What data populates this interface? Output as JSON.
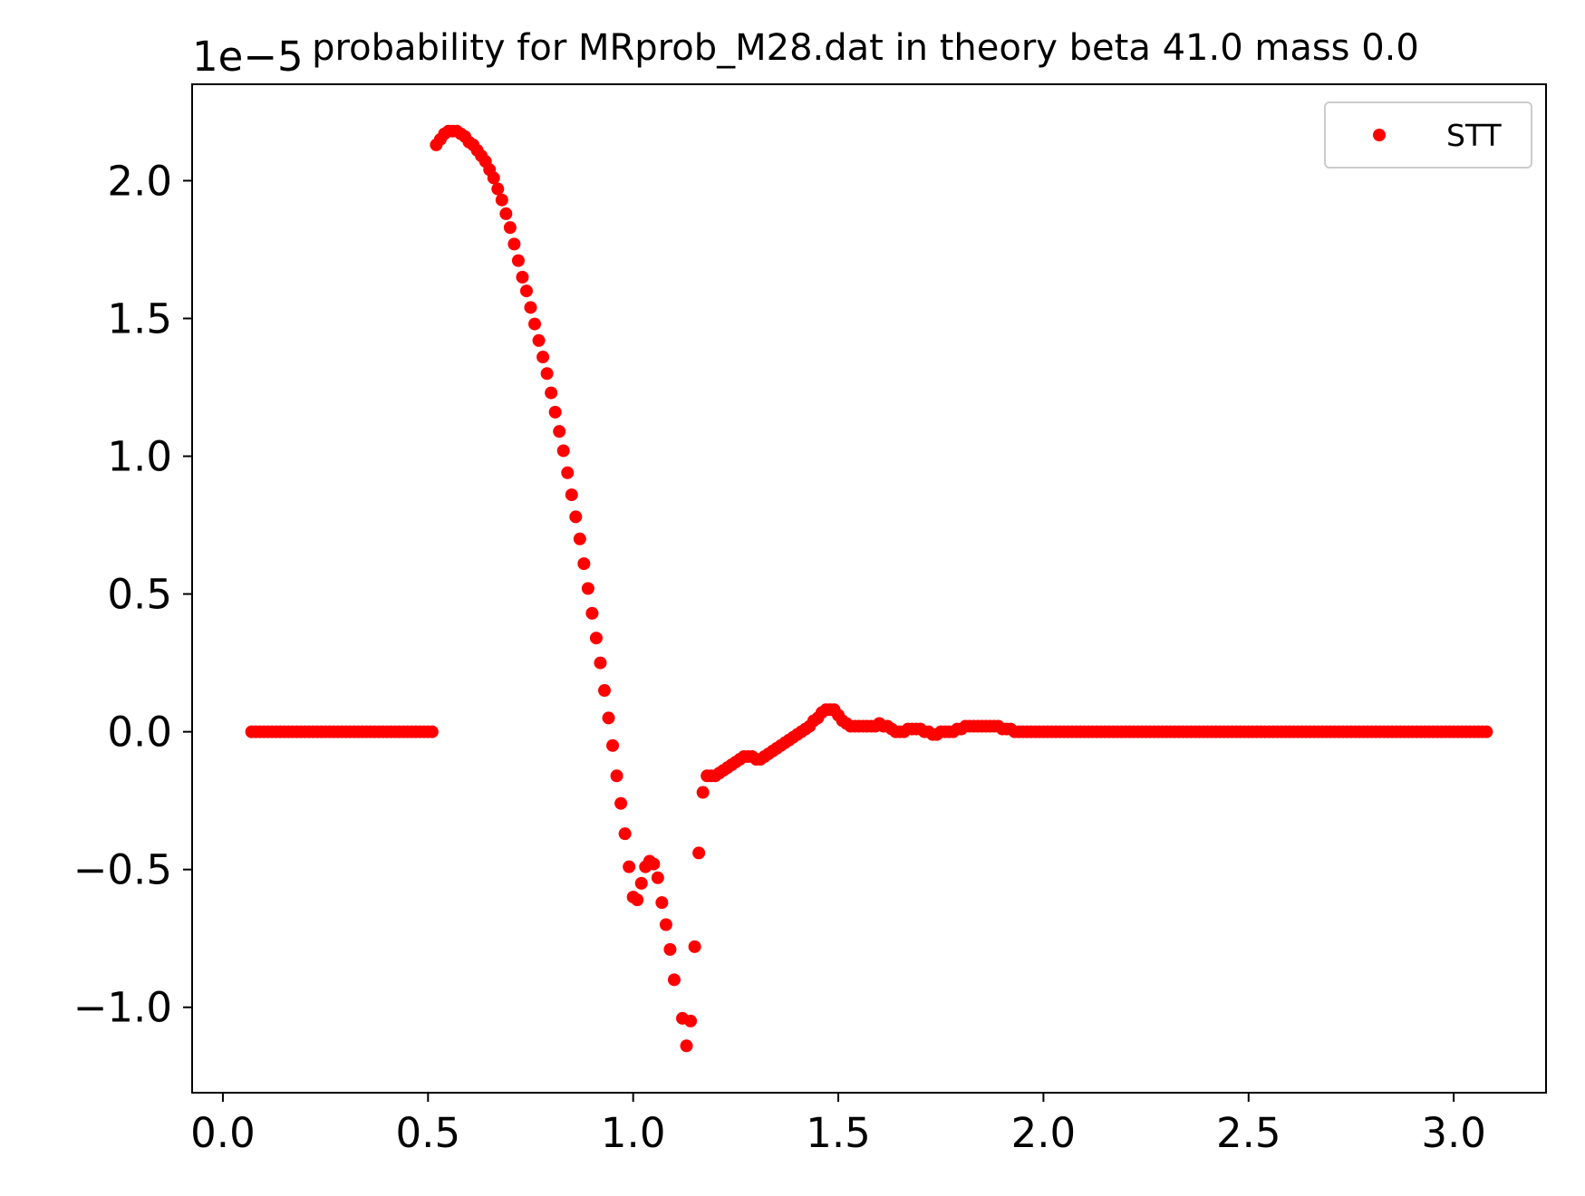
{
  "chart_data": {
    "type": "scatter",
    "title": "probability for MRprob_M28.dat in theory beta 41.0 mass 0.0",
    "xlabel": "",
    "ylabel": "",
    "y_offset_label": "1e−5",
    "xlim": [
      -0.075,
      3.225
    ],
    "ylim": [
      -1.31,
      2.35
    ],
    "x_ticks": [
      0.0,
      0.5,
      1.0,
      1.5,
      2.0,
      2.5,
      3.0
    ],
    "x_tick_labels": [
      "0.0",
      "0.5",
      "1.0",
      "1.5",
      "2.0",
      "2.5",
      "3.0"
    ],
    "y_ticks": [
      -1.0,
      -0.5,
      0.0,
      0.5,
      1.0,
      1.5,
      2.0
    ],
    "y_tick_labels": [
      "−1.0",
      "−0.5",
      "0.0",
      "0.5",
      "1.0",
      "1.5",
      "2.0"
    ],
    "grid": false,
    "legend_position": "top-right",
    "series": [
      {
        "name": "STT",
        "color": "#ff0000",
        "marker": "dot",
        "points": [
          [
            0.07,
            0.0
          ],
          [
            0.08,
            0.0
          ],
          [
            0.09,
            0.0
          ],
          [
            0.1,
            0.0
          ],
          [
            0.11,
            0.0
          ],
          [
            0.12,
            0.0
          ],
          [
            0.13,
            0.0
          ],
          [
            0.14,
            0.0
          ],
          [
            0.15,
            0.0
          ],
          [
            0.16,
            0.0
          ],
          [
            0.17,
            0.0
          ],
          [
            0.18,
            0.0
          ],
          [
            0.19,
            0.0
          ],
          [
            0.2,
            0.0
          ],
          [
            0.21,
            0.0
          ],
          [
            0.22,
            0.0
          ],
          [
            0.23,
            0.0
          ],
          [
            0.24,
            0.0
          ],
          [
            0.25,
            0.0
          ],
          [
            0.26,
            0.0
          ],
          [
            0.27,
            0.0
          ],
          [
            0.28,
            0.0
          ],
          [
            0.29,
            0.0
          ],
          [
            0.3,
            0.0
          ],
          [
            0.31,
            0.0
          ],
          [
            0.32,
            0.0
          ],
          [
            0.33,
            0.0
          ],
          [
            0.34,
            0.0
          ],
          [
            0.35,
            0.0
          ],
          [
            0.36,
            0.0
          ],
          [
            0.37,
            0.0
          ],
          [
            0.38,
            0.0
          ],
          [
            0.39,
            0.0
          ],
          [
            0.4,
            0.0
          ],
          [
            0.41,
            0.0
          ],
          [
            0.42,
            0.0
          ],
          [
            0.43,
            0.0
          ],
          [
            0.44,
            0.0
          ],
          [
            0.45,
            0.0
          ],
          [
            0.46,
            0.0
          ],
          [
            0.47,
            0.0
          ],
          [
            0.48,
            0.0
          ],
          [
            0.49,
            0.0
          ],
          [
            0.5,
            0.0
          ],
          [
            0.51,
            0.0
          ],
          [
            0.52,
            2.13
          ],
          [
            0.53,
            2.15
          ],
          [
            0.54,
            2.17
          ],
          [
            0.55,
            2.18
          ],
          [
            0.56,
            2.18
          ],
          [
            0.57,
            2.18
          ],
          [
            0.58,
            2.17
          ],
          [
            0.59,
            2.16
          ],
          [
            0.6,
            2.14
          ],
          [
            0.61,
            2.13
          ],
          [
            0.62,
            2.11
          ],
          [
            0.63,
            2.09
          ],
          [
            0.64,
            2.07
          ],
          [
            0.65,
            2.04
          ],
          [
            0.66,
            2.01
          ],
          [
            0.67,
            1.97
          ],
          [
            0.68,
            1.93
          ],
          [
            0.69,
            1.88
          ],
          [
            0.7,
            1.83
          ],
          [
            0.71,
            1.77
          ],
          [
            0.72,
            1.71
          ],
          [
            0.73,
            1.65
          ],
          [
            0.74,
            1.6
          ],
          [
            0.75,
            1.54
          ],
          [
            0.76,
            1.48
          ],
          [
            0.77,
            1.42
          ],
          [
            0.78,
            1.36
          ],
          [
            0.79,
            1.3
          ],
          [
            0.8,
            1.23
          ],
          [
            0.81,
            1.16
          ],
          [
            0.82,
            1.09
          ],
          [
            0.83,
            1.02
          ],
          [
            0.84,
            0.94
          ],
          [
            0.85,
            0.86
          ],
          [
            0.86,
            0.78
          ],
          [
            0.87,
            0.7
          ],
          [
            0.88,
            0.61
          ],
          [
            0.89,
            0.52
          ],
          [
            0.9,
            0.43
          ],
          [
            0.91,
            0.34
          ],
          [
            0.92,
            0.25
          ],
          [
            0.93,
            0.15
          ],
          [
            0.94,
            0.05
          ],
          [
            0.95,
            -0.05
          ],
          [
            0.96,
            -0.16
          ],
          [
            0.97,
            -0.26
          ],
          [
            0.98,
            -0.37
          ],
          [
            0.99,
            -0.49
          ],
          [
            1.0,
            -0.6
          ],
          [
            1.01,
            -0.61
          ],
          [
            1.02,
            -0.55
          ],
          [
            1.03,
            -0.49
          ],
          [
            1.04,
            -0.47
          ],
          [
            1.05,
            -0.48
          ],
          [
            1.06,
            -0.53
          ],
          [
            1.07,
            -0.62
          ],
          [
            1.08,
            -0.7
          ],
          [
            1.09,
            -0.79
          ],
          [
            1.1,
            -0.9
          ],
          [
            1.12,
            -1.04
          ],
          [
            1.13,
            -1.14
          ],
          [
            1.14,
            -1.05
          ],
          [
            1.15,
            -0.78
          ],
          [
            1.16,
            -0.44
          ],
          [
            1.17,
            -0.22
          ],
          [
            1.18,
            -0.16
          ],
          [
            1.19,
            -0.16
          ],
          [
            1.2,
            -0.16
          ],
          [
            1.21,
            -0.15
          ],
          [
            1.22,
            -0.14
          ],
          [
            1.23,
            -0.13
          ],
          [
            1.24,
            -0.12
          ],
          [
            1.25,
            -0.11
          ],
          [
            1.26,
            -0.1
          ],
          [
            1.27,
            -0.09
          ],
          [
            1.28,
            -0.09
          ],
          [
            1.29,
            -0.09
          ],
          [
            1.3,
            -0.1
          ],
          [
            1.31,
            -0.1
          ],
          [
            1.32,
            -0.09
          ],
          [
            1.33,
            -0.08
          ],
          [
            1.34,
            -0.07
          ],
          [
            1.35,
            -0.06
          ],
          [
            1.36,
            -0.05
          ],
          [
            1.37,
            -0.04
          ],
          [
            1.38,
            -0.03
          ],
          [
            1.39,
            -0.02
          ],
          [
            1.4,
            -0.01
          ],
          [
            1.41,
            0.0
          ],
          [
            1.42,
            0.01
          ],
          [
            1.43,
            0.02
          ],
          [
            1.44,
            0.04
          ],
          [
            1.45,
            0.05
          ],
          [
            1.46,
            0.07
          ],
          [
            1.47,
            0.08
          ],
          [
            1.48,
            0.08
          ],
          [
            1.49,
            0.08
          ],
          [
            1.5,
            0.06
          ],
          [
            1.51,
            0.04
          ],
          [
            1.52,
            0.03
          ],
          [
            1.53,
            0.02
          ],
          [
            1.54,
            0.02
          ],
          [
            1.55,
            0.02
          ],
          [
            1.56,
            0.02
          ],
          [
            1.57,
            0.02
          ],
          [
            1.58,
            0.02
          ],
          [
            1.59,
            0.02
          ],
          [
            1.6,
            0.03
          ],
          [
            1.61,
            0.02
          ],
          [
            1.62,
            0.02
          ],
          [
            1.63,
            0.01
          ],
          [
            1.64,
            0.0
          ],
          [
            1.65,
            0.0
          ],
          [
            1.66,
            0.0
          ],
          [
            1.67,
            0.01
          ],
          [
            1.68,
            0.01
          ],
          [
            1.69,
            0.01
          ],
          [
            1.7,
            0.01
          ],
          [
            1.71,
            0.0
          ],
          [
            1.72,
            0.0
          ],
          [
            1.73,
            -0.01
          ],
          [
            1.74,
            -0.01
          ],
          [
            1.75,
            0.0
          ],
          [
            1.76,
            0.0
          ],
          [
            1.77,
            0.0
          ],
          [
            1.78,
            0.0
          ],
          [
            1.79,
            0.01
          ],
          [
            1.8,
            0.01
          ],
          [
            1.81,
            0.02
          ],
          [
            1.82,
            0.02
          ],
          [
            1.83,
            0.02
          ],
          [
            1.84,
            0.02
          ],
          [
            1.85,
            0.02
          ],
          [
            1.86,
            0.02
          ],
          [
            1.87,
            0.02
          ],
          [
            1.88,
            0.02
          ],
          [
            1.89,
            0.02
          ],
          [
            1.9,
            0.01
          ],
          [
            1.91,
            0.01
          ],
          [
            1.92,
            0.01
          ],
          [
            1.93,
            0.0
          ],
          [
            1.94,
            0.0
          ],
          [
            1.95,
            0.0
          ],
          [
            1.96,
            0.0
          ],
          [
            1.97,
            0.0
          ],
          [
            1.98,
            0.0
          ],
          [
            1.99,
            0.0
          ],
          [
            2.0,
            0.0
          ],
          [
            2.01,
            0.0
          ],
          [
            2.02,
            0.0
          ],
          [
            2.03,
            0.0
          ],
          [
            2.04,
            0.0
          ],
          [
            2.05,
            0.0
          ],
          [
            2.06,
            0.0
          ],
          [
            2.07,
            0.0
          ],
          [
            2.08,
            0.0
          ],
          [
            2.09,
            0.0
          ],
          [
            2.1,
            0.0
          ],
          [
            2.11,
            0.0
          ],
          [
            2.12,
            0.0
          ],
          [
            2.13,
            0.0
          ],
          [
            2.14,
            0.0
          ],
          [
            2.15,
            0.0
          ],
          [
            2.16,
            0.0
          ],
          [
            2.17,
            0.0
          ],
          [
            2.18,
            0.0
          ],
          [
            2.19,
            0.0
          ],
          [
            2.2,
            0.0
          ],
          [
            2.21,
            0.0
          ],
          [
            2.22,
            0.0
          ],
          [
            2.23,
            0.0
          ],
          [
            2.24,
            0.0
          ],
          [
            2.25,
            0.0
          ],
          [
            2.26,
            0.0
          ],
          [
            2.27,
            0.0
          ],
          [
            2.28,
            0.0
          ],
          [
            2.29,
            0.0
          ],
          [
            2.3,
            0.0
          ],
          [
            2.31,
            0.0
          ],
          [
            2.32,
            0.0
          ],
          [
            2.33,
            0.0
          ],
          [
            2.34,
            0.0
          ],
          [
            2.35,
            0.0
          ],
          [
            2.36,
            0.0
          ],
          [
            2.37,
            0.0
          ],
          [
            2.38,
            0.0
          ],
          [
            2.39,
            0.0
          ],
          [
            2.4,
            0.0
          ],
          [
            2.41,
            0.0
          ],
          [
            2.42,
            0.0
          ],
          [
            2.43,
            0.0
          ],
          [
            2.44,
            0.0
          ],
          [
            2.45,
            0.0
          ],
          [
            2.46,
            0.0
          ],
          [
            2.47,
            0.0
          ],
          [
            2.48,
            0.0
          ],
          [
            2.49,
            0.0
          ],
          [
            2.5,
            0.0
          ],
          [
            2.51,
            0.0
          ],
          [
            2.52,
            0.0
          ],
          [
            2.53,
            0.0
          ],
          [
            2.54,
            0.0
          ],
          [
            2.55,
            0.0
          ],
          [
            2.56,
            0.0
          ],
          [
            2.57,
            0.0
          ],
          [
            2.58,
            0.0
          ],
          [
            2.59,
            0.0
          ],
          [
            2.6,
            0.0
          ],
          [
            2.61,
            0.0
          ],
          [
            2.62,
            0.0
          ],
          [
            2.63,
            0.0
          ],
          [
            2.64,
            0.0
          ],
          [
            2.65,
            0.0
          ],
          [
            2.66,
            0.0
          ],
          [
            2.67,
            0.0
          ],
          [
            2.68,
            0.0
          ],
          [
            2.69,
            0.0
          ],
          [
            2.7,
            0.0
          ],
          [
            2.71,
            0.0
          ],
          [
            2.72,
            0.0
          ],
          [
            2.73,
            0.0
          ],
          [
            2.74,
            0.0
          ],
          [
            2.75,
            0.0
          ],
          [
            2.76,
            0.0
          ],
          [
            2.77,
            0.0
          ],
          [
            2.78,
            0.0
          ],
          [
            2.79,
            0.0
          ],
          [
            2.8,
            0.0
          ],
          [
            2.81,
            0.0
          ],
          [
            2.82,
            0.0
          ],
          [
            2.83,
            0.0
          ],
          [
            2.84,
            0.0
          ],
          [
            2.85,
            0.0
          ],
          [
            2.86,
            0.0
          ],
          [
            2.87,
            0.0
          ],
          [
            2.88,
            0.0
          ],
          [
            2.89,
            0.0
          ],
          [
            2.9,
            0.0
          ],
          [
            2.91,
            0.0
          ],
          [
            2.92,
            0.0
          ],
          [
            2.93,
            0.0
          ],
          [
            2.94,
            0.0
          ],
          [
            2.95,
            0.0
          ],
          [
            2.96,
            0.0
          ],
          [
            2.97,
            0.0
          ],
          [
            2.98,
            0.0
          ],
          [
            2.99,
            0.0
          ],
          [
            3.0,
            0.0
          ],
          [
            3.01,
            0.0
          ],
          [
            3.02,
            0.0
          ],
          [
            3.03,
            0.0
          ],
          [
            3.04,
            0.0
          ],
          [
            3.05,
            0.0
          ],
          [
            3.06,
            0.0
          ],
          [
            3.07,
            0.0
          ],
          [
            3.08,
            0.0
          ]
        ]
      }
    ]
  }
}
